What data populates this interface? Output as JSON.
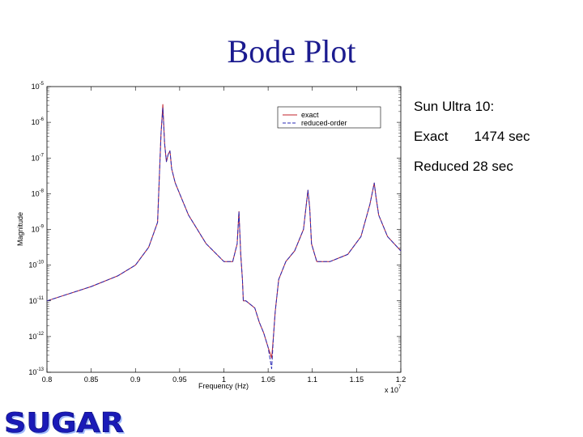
{
  "slide": {
    "title": "Bode Plot"
  },
  "notes": {
    "machine": "Sun Ultra 10:",
    "exact_label": "Exact",
    "exact_time": "1474 sec",
    "reduced_line": "Reduced 28 sec"
  },
  "logo": {
    "text": "SUGAR"
  },
  "chart_data": {
    "type": "line",
    "title": "",
    "xlabel": "Frequency (Hz)",
    "ylabel": "Magnitude",
    "x_multiplier": "x 10^7",
    "xlim": [
      0.8,
      1.2
    ],
    "ylim_exponent": [
      -13,
      -5
    ],
    "yscale": "log",
    "x_ticks": [
      "0.8",
      "0.85",
      "0.9",
      "0.95",
      "1",
      "1.05",
      "1.1",
      "1.15",
      "1.2"
    ],
    "y_ticks": [
      "10^-5",
      "10^-6",
      "10^-7",
      "10^-8",
      "10^-9",
      "10^-10",
      "10^-11",
      "10^-12",
      "10^-13"
    ],
    "legend": {
      "placement": "top-right",
      "entries": [
        "exact",
        "reduced-order"
      ]
    },
    "series": [
      {
        "name": "exact",
        "color": "#c0202a",
        "style": "solid",
        "x": [
          0.8,
          0.85,
          0.88,
          0.9,
          0.915,
          0.925,
          0.929,
          0.931,
          0.933,
          0.935,
          0.937,
          0.939,
          0.941,
          0.945,
          0.95,
          0.96,
          0.98,
          1.0,
          1.01,
          1.015,
          1.017,
          1.019,
          1.021,
          1.022,
          1.025,
          1.035,
          1.04,
          1.045,
          1.05,
          1.054,
          1.056,
          1.058,
          1.062,
          1.07,
          1.08,
          1.09,
          1.095,
          1.097,
          1.099,
          1.105,
          1.12,
          1.14,
          1.155,
          1.165,
          1.17,
          1.172,
          1.175,
          1.185,
          1.2
        ],
        "y_log10": [
          -11.0,
          -10.6,
          -10.3,
          -10.0,
          -9.5,
          -8.8,
          -6.3,
          -5.5,
          -6.6,
          -7.1,
          -6.9,
          -6.8,
          -7.3,
          -7.7,
          -8.0,
          -8.6,
          -9.4,
          -9.9,
          -9.9,
          -9.4,
          -8.5,
          -9.7,
          -10.4,
          -11.0,
          -11.0,
          -11.2,
          -11.6,
          -11.9,
          -12.3,
          -12.6,
          -12.0,
          -11.3,
          -10.4,
          -9.9,
          -9.6,
          -9.0,
          -7.9,
          -8.4,
          -9.4,
          -9.9,
          -9.9,
          -9.7,
          -9.2,
          -8.3,
          -7.7,
          -8.1,
          -8.6,
          -9.2,
          -9.6
        ]
      },
      {
        "name": "reduced-order",
        "color": "#2a2ab4",
        "style": "dashed",
        "x": [
          0.8,
          0.85,
          0.88,
          0.9,
          0.915,
          0.925,
          0.929,
          0.931,
          0.933,
          0.935,
          0.937,
          0.939,
          0.941,
          0.945,
          0.95,
          0.96,
          0.98,
          1.0,
          1.01,
          1.015,
          1.017,
          1.019,
          1.021,
          1.022,
          1.025,
          1.035,
          1.04,
          1.045,
          1.05,
          1.054,
          1.056,
          1.058,
          1.062,
          1.07,
          1.08,
          1.09,
          1.095,
          1.097,
          1.099,
          1.105,
          1.12,
          1.14,
          1.155,
          1.165,
          1.17,
          1.172,
          1.175,
          1.185,
          1.2
        ],
        "y_log10": [
          -11.0,
          -10.6,
          -10.3,
          -10.0,
          -9.5,
          -8.8,
          -6.3,
          -5.6,
          -6.6,
          -7.1,
          -6.9,
          -6.8,
          -7.3,
          -7.7,
          -8.0,
          -8.6,
          -9.4,
          -9.9,
          -9.9,
          -9.4,
          -8.5,
          -9.7,
          -10.4,
          -11.0,
          -11.0,
          -11.2,
          -11.6,
          -11.9,
          -12.3,
          -12.9,
          -12.0,
          -11.3,
          -10.4,
          -9.9,
          -9.6,
          -9.0,
          -7.9,
          -8.4,
          -9.4,
          -9.9,
          -9.9,
          -9.7,
          -9.2,
          -8.3,
          -7.7,
          -8.1,
          -8.6,
          -9.2,
          -9.6
        ]
      }
    ]
  }
}
